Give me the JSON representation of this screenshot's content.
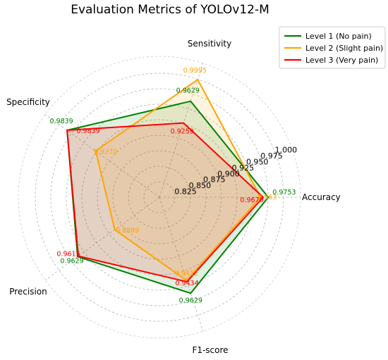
{
  "chart_data": {
    "type": "radar",
    "title": "Evaluation Metrics of YOLOv12-M",
    "axes": [
      "Accuracy",
      "Sensitivity",
      "Specificity",
      "Precision",
      "F1-score"
    ],
    "r_ticks": [
      "0.825",
      "0.850",
      "0.875",
      "0.900",
      "0.925",
      "0.950",
      "0.975",
      "1.000"
    ],
    "r_min": 0.8,
    "r_max": 1.0,
    "grid": true,
    "legend_position": "top-right",
    "series": [
      {
        "name": "Level 1 (No pain)",
        "color": "#008000",
        "values": [
          0.9753,
          0.9629,
          0.9839,
          0.9629,
          0.9629
        ],
        "labels": [
          "0.9753",
          "0.9629",
          "0.9839",
          "0.9629",
          "0.9629"
        ]
      },
      {
        "name": "Level 2 (Slight pain)",
        "color": "#FFA500",
        "values": [
          0.963,
          0.9995,
          0.927,
          0.8889,
          0.9412
        ],
        "labels": [
          "0.963",
          "0.9995",
          "0.9270",
          "0.8889",
          "0.9412"
        ]
      },
      {
        "name": "Level 3 (Very pain)",
        "color": "#FF0000",
        "values": [
          0.967,
          0.9259,
          0.9839,
          0.9615,
          0.9434
        ],
        "labels": [
          "0.9670",
          "0.9259",
          "0.9839",
          "0.9615",
          "0.9434"
        ]
      }
    ]
  }
}
